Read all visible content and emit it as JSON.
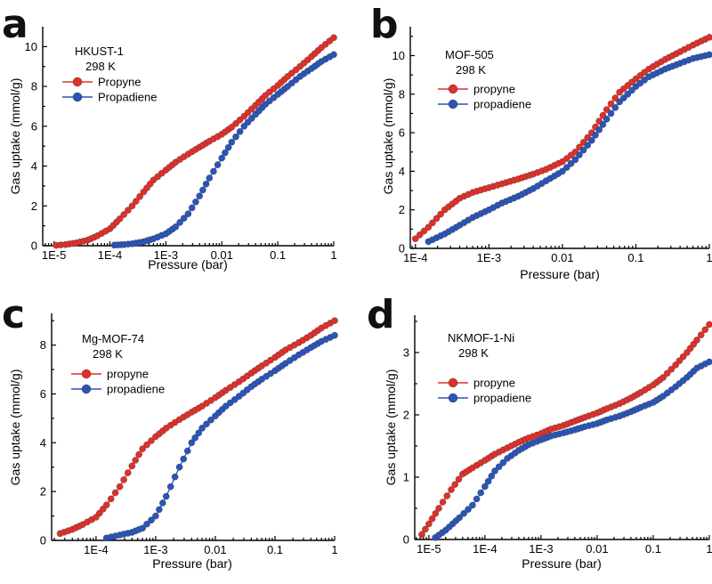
{
  "colors": {
    "series1": "#e0302b",
    "series2": "#2a55b8",
    "axis": "#000000"
  },
  "chart_data": [
    {
      "panel": "a",
      "type": "scatter",
      "mode": "line+markers",
      "sample_name": "HKUST-1",
      "temperature": "298 K",
      "xlabel": "Pressure (bar)",
      "ylabel": "Gas uptake (mmol/g)",
      "xscale": "log",
      "xlim": [
        6.3e-06,
        1
      ],
      "ylim": [
        0,
        11
      ],
      "xticks": [
        1e-05,
        0.0001,
        0.001,
        0.01,
        0.1,
        1
      ],
      "xtick_labels": [
        "1E-5",
        "1E-4",
        "1E-3",
        "0.01",
        "0.1",
        "1"
      ],
      "yticks": [
        0,
        2,
        4,
        6,
        8,
        10
      ],
      "ytick_labels": [
        "0",
        "2",
        "4",
        "6",
        "8",
        "10"
      ],
      "legend_position": "top-left",
      "series": [
        {
          "name": "Propyne",
          "x": [
            1.1e-05,
            1.6e-05,
            2.5e-05,
            4e-05,
            6e-05,
            0.0001,
            0.00015,
            0.00025,
            0.0004,
            0.0006,
            0.001,
            0.0015,
            0.0025,
            0.004,
            0.006,
            0.01,
            0.015,
            0.025,
            0.04,
            0.06,
            0.1,
            0.15,
            0.25,
            0.4,
            0.6,
            1.0
          ],
          "y": [
            0.02,
            0.06,
            0.14,
            0.28,
            0.5,
            0.85,
            1.35,
            2.0,
            2.7,
            3.3,
            3.8,
            4.2,
            4.6,
            4.95,
            5.25,
            5.6,
            5.95,
            6.5,
            7.05,
            7.55,
            8.05,
            8.5,
            9.0,
            9.5,
            9.95,
            10.45
          ]
        },
        {
          "name": "Propadiene",
          "x": [
            0.00012,
            0.00018,
            0.00025,
            0.0004,
            0.0006,
            0.001,
            0.0015,
            0.0025,
            0.004,
            0.006,
            0.01,
            0.015,
            0.025,
            0.04,
            0.06,
            0.1,
            0.15,
            0.25,
            0.4,
            0.6,
            1.0
          ],
          "y": [
            0.03,
            0.06,
            0.1,
            0.2,
            0.35,
            0.6,
            0.95,
            1.6,
            2.5,
            3.4,
            4.4,
            5.2,
            6.0,
            6.6,
            7.1,
            7.6,
            8.0,
            8.5,
            8.9,
            9.25,
            9.6
          ]
        }
      ]
    },
    {
      "panel": "b",
      "type": "scatter",
      "mode": "line+markers",
      "sample_name": "MOF-505",
      "temperature": "298 K",
      "xlabel": "Pressure (bar)",
      "ylabel": "Gas uptake (mmol/g)",
      "xscale": "log",
      "xlim": [
        8.5e-05,
        1
      ],
      "ylim": [
        0,
        11.5
      ],
      "xticks": [
        0.0001,
        0.001,
        0.01,
        0.1,
        1
      ],
      "xtick_labels": [
        "1E-4",
        "1E-3",
        "0.01",
        "0.1",
        "1"
      ],
      "yticks": [
        0,
        2,
        4,
        6,
        8,
        10
      ],
      "ytick_labels": [
        "0",
        "2",
        "4",
        "6",
        "8",
        "10"
      ],
      "legend_position": "top-left",
      "series": [
        {
          "name": "propyne",
          "x": [
            0.0001,
            0.00015,
            0.00025,
            0.0004,
            0.0006,
            0.001,
            0.0015,
            0.0025,
            0.004,
            0.006,
            0.01,
            0.015,
            0.025,
            0.04,
            0.06,
            0.1,
            0.15,
            0.25,
            0.4,
            0.6,
            1.0
          ],
          "y": [
            0.5,
            1.1,
            2.0,
            2.6,
            2.9,
            3.15,
            3.35,
            3.6,
            3.85,
            4.1,
            4.5,
            5.0,
            6.0,
            7.2,
            8.1,
            8.8,
            9.3,
            9.8,
            10.2,
            10.55,
            10.95
          ]
        },
        {
          "name": "propadiene",
          "x": [
            0.00015,
            0.00025,
            0.0004,
            0.0006,
            0.001,
            0.0015,
            0.0025,
            0.004,
            0.006,
            0.01,
            0.015,
            0.025,
            0.04,
            0.06,
            0.1,
            0.15,
            0.25,
            0.4,
            0.6,
            1.0
          ],
          "y": [
            0.35,
            0.75,
            1.2,
            1.6,
            2.0,
            2.35,
            2.7,
            3.1,
            3.5,
            4.0,
            4.6,
            5.6,
            6.7,
            7.6,
            8.4,
            8.9,
            9.3,
            9.6,
            9.85,
            10.05
          ]
        }
      ]
    },
    {
      "panel": "c",
      "type": "scatter",
      "mode": "line+markers",
      "sample_name": "Mg-MOF-74",
      "temperature": "298 K",
      "xlabel": "Pressure (bar)",
      "ylabel": "Gas uptake (mmol/g)",
      "xscale": "log",
      "xlim": [
        1.8e-05,
        1
      ],
      "ylim": [
        0,
        9.3
      ],
      "xticks": [
        0.0001,
        0.001,
        0.01,
        0.1,
        1
      ],
      "xtick_labels": [
        "1E-4",
        "1E-3",
        "0.01",
        "0.1",
        "1"
      ],
      "yticks": [
        0,
        2,
        4,
        6,
        8
      ],
      "ytick_labels": [
        "0",
        "2",
        "4",
        "6",
        "8"
      ],
      "legend_position": "top-left",
      "series": [
        {
          "name": "propyne",
          "x": [
            2.5e-05,
            4e-05,
            6e-05,
            0.0001,
            0.00015,
            0.00025,
            0.0004,
            0.0006,
            0.001,
            0.0015,
            0.0025,
            0.004,
            0.006,
            0.01,
            0.015,
            0.025,
            0.04,
            0.06,
            0.1,
            0.15,
            0.25,
            0.4,
            0.6,
            1.0
          ],
          "y": [
            0.28,
            0.45,
            0.65,
            0.95,
            1.45,
            2.2,
            3.05,
            3.75,
            4.25,
            4.6,
            4.95,
            5.25,
            5.5,
            5.85,
            6.15,
            6.5,
            6.85,
            7.15,
            7.5,
            7.8,
            8.1,
            8.4,
            8.7,
            9.0
          ]
        },
        {
          "name": "propadiene",
          "x": [
            0.00015,
            0.00025,
            0.0004,
            0.0006,
            0.001,
            0.0015,
            0.0025,
            0.004,
            0.006,
            0.01,
            0.015,
            0.025,
            0.04,
            0.06,
            0.1,
            0.15,
            0.25,
            0.4,
            0.6,
            1.0
          ],
          "y": [
            0.1,
            0.22,
            0.33,
            0.5,
            1.0,
            1.8,
            3.0,
            4.0,
            4.6,
            5.1,
            5.5,
            5.9,
            6.3,
            6.6,
            6.95,
            7.25,
            7.6,
            7.9,
            8.15,
            8.4
          ]
        }
      ]
    },
    {
      "panel": "d",
      "type": "scatter",
      "mode": "line+markers",
      "sample_name": "NKMOF-1-Ni",
      "temperature": "298 K",
      "xlabel": "Pressure (bar)",
      "ylabel": "Gas uptake (mmol/g)",
      "xscale": "log",
      "xlim": [
        5.6e-06,
        1
      ],
      "ylim": [
        0,
        3.6
      ],
      "xticks": [
        1e-05,
        0.0001,
        0.001,
        0.01,
        0.1,
        1
      ],
      "xtick_labels": [
        "1E-5",
        "1E-4",
        "1E-3",
        "0.01",
        "0.1",
        "1"
      ],
      "yticks": [
        0,
        1,
        2,
        3
      ],
      "ytick_labels": [
        "0",
        "1",
        "2",
        "3"
      ],
      "legend_position": "top-left",
      "series": [
        {
          "name": "propyne",
          "x": [
            7.5e-06,
            1e-05,
            1.5e-05,
            2.5e-05,
            4e-05,
            6e-05,
            0.0001,
            0.00015,
            0.00025,
            0.0004,
            0.0006,
            0.001,
            0.0015,
            0.0025,
            0.004,
            0.006,
            0.01,
            0.015,
            0.025,
            0.04,
            0.06,
            0.1,
            0.15,
            0.25,
            0.4,
            0.6,
            1.0
          ],
          "y": [
            0.08,
            0.25,
            0.5,
            0.8,
            1.05,
            1.15,
            1.27,
            1.37,
            1.47,
            1.56,
            1.63,
            1.7,
            1.77,
            1.83,
            1.9,
            1.96,
            2.03,
            2.1,
            2.18,
            2.27,
            2.36,
            2.48,
            2.6,
            2.8,
            3.0,
            3.2,
            3.45
          ]
        },
        {
          "name": "propadiene",
          "x": [
            1.3e-05,
            2e-05,
            3.5e-05,
            6e-05,
            0.0001,
            0.00015,
            0.00025,
            0.0004,
            0.0006,
            0.001,
            0.0015,
            0.0025,
            0.004,
            0.006,
            0.01,
            0.015,
            0.025,
            0.04,
            0.06,
            0.1,
            0.15,
            0.25,
            0.4,
            0.6,
            1.0
          ],
          "y": [
            0.03,
            0.15,
            0.35,
            0.55,
            0.85,
            1.1,
            1.3,
            1.43,
            1.52,
            1.6,
            1.66,
            1.71,
            1.76,
            1.81,
            1.86,
            1.92,
            1.98,
            2.05,
            2.12,
            2.2,
            2.3,
            2.45,
            2.6,
            2.75,
            2.85
          ]
        }
      ]
    }
  ]
}
